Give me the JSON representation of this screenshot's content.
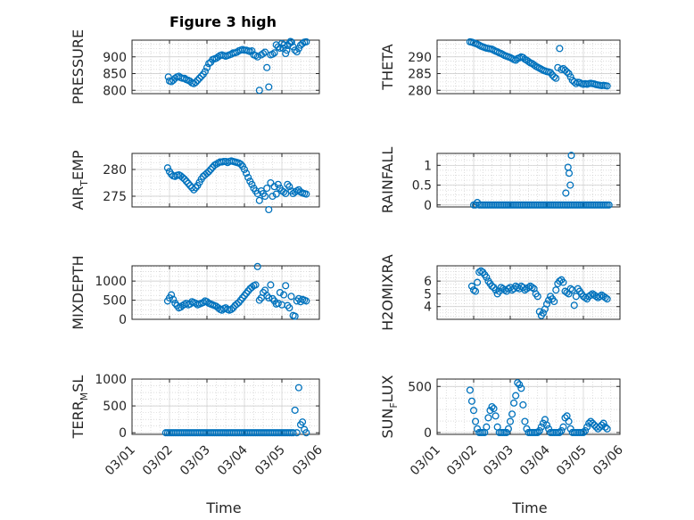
{
  "figure": {
    "title": "Figure 3 high",
    "marker_color": "#0072BD",
    "axes_color": "#262626",
    "grid_color": "#c8c8c8"
  },
  "chart_data": [
    {
      "type": "scatter",
      "id": "pressure",
      "ylabel_parts": [
        "PRESSURE"
      ],
      "title": "Figure 3 high",
      "xlim": [
        0,
        5
      ],
      "ylim": [
        790,
        950
      ],
      "yticks": [
        800,
        850,
        900
      ],
      "ytick_labels": [
        "800",
        "850",
        "900"
      ],
      "x": [
        0.97,
        1.0,
        1.05,
        1.1,
        1.15,
        1.2,
        1.25,
        1.3,
        1.35,
        1.4,
        1.45,
        1.5,
        1.55,
        1.6,
        1.65,
        1.7,
        1.75,
        1.8,
        1.85,
        1.9,
        1.95,
        2.0,
        2.05,
        2.1,
        2.15,
        2.2,
        2.25,
        2.3,
        2.35,
        2.4,
        2.45,
        2.5,
        2.55,
        2.6,
        2.65,
        2.7,
        2.75,
        2.8,
        2.85,
        2.9,
        2.95,
        3.0,
        3.05,
        3.1,
        3.15,
        3.2,
        3.25,
        3.3,
        3.35,
        3.4,
        3.45,
        3.5,
        3.55,
        3.6,
        3.65,
        3.7,
        3.75,
        3.8,
        3.85,
        3.9,
        3.95,
        4.0,
        4.03,
        4.06,
        4.1,
        4.13,
        4.16,
        4.2,
        4.23,
        4.26,
        4.3,
        4.35,
        4.4,
        4.45,
        4.5,
        4.55,
        4.6,
        4.65
      ],
      "y": [
        840,
        828,
        826,
        830,
        836,
        840,
        842,
        838,
        836,
        836,
        832,
        830,
        827,
        822,
        820,
        824,
        830,
        836,
        842,
        848,
        856,
        868,
        880,
        884,
        892,
        894,
        896,
        900,
        904,
        906,
        904,
        902,
        904,
        906,
        908,
        912,
        912,
        914,
        918,
        920,
        922,
        920,
        920,
        918,
        916,
        918,
        906,
        904,
        900,
        800,
        906,
        910,
        914,
        868,
        810,
        906,
        908,
        912,
        936,
        930,
        926,
        940,
        926,
        936,
        910,
        920,
        934,
        940,
        946,
        944,
        930,
        920,
        915,
        925,
        935,
        940,
        944,
        945
      ]
    },
    {
      "type": "scatter",
      "id": "theta",
      "ylabel_parts": [
        "THETA"
      ],
      "xlim": [
        0,
        5
      ],
      "ylim": [
        279,
        295
      ],
      "yticks": [
        280,
        285,
        290
      ],
      "ytick_labels": [
        "280",
        "285",
        "290"
      ],
      "x": [
        0.9,
        0.95,
        1.0,
        1.05,
        1.1,
        1.15,
        1.2,
        1.25,
        1.3,
        1.35,
        1.4,
        1.45,
        1.5,
        1.55,
        1.6,
        1.65,
        1.7,
        1.75,
        1.8,
        1.85,
        1.9,
        1.95,
        2.0,
        2.05,
        2.1,
        2.15,
        2.2,
        2.25,
        2.3,
        2.35,
        2.4,
        2.45,
        2.5,
        2.55,
        2.6,
        2.65,
        2.7,
        2.75,
        2.8,
        2.85,
        2.9,
        2.95,
        3.0,
        3.05,
        3.1,
        3.15,
        3.2,
        3.25,
        3.3,
        3.35,
        3.4,
        3.45,
        3.5,
        3.55,
        3.6,
        3.65,
        3.7,
        3.75,
        3.8,
        3.85,
        3.9,
        3.95,
        4.0,
        4.05,
        4.1,
        4.15,
        4.2,
        4.25,
        4.3,
        4.35,
        4.4,
        4.45,
        4.5,
        4.55,
        4.6,
        4.65
      ],
      "y": [
        294.5,
        294.4,
        294.2,
        294.0,
        293.8,
        293.5,
        293.2,
        293.0,
        292.8,
        292.6,
        292.5,
        292.4,
        292.3,
        292.0,
        291.7,
        291.5,
        291.2,
        291.0,
        290.7,
        290.4,
        290.2,
        290.0,
        289.8,
        289.5,
        289.2,
        289.0,
        289.5,
        289.7,
        290.0,
        289.8,
        289.3,
        289.0,
        288.6,
        288.2,
        288.0,
        287.6,
        287.2,
        286.9,
        286.6,
        286.3,
        286.0,
        285.8,
        285.6,
        285.5,
        285.3,
        284.6,
        284.0,
        283.6,
        286.8,
        292.5,
        286.2,
        286.5,
        286.0,
        285.5,
        285.0,
        284.0,
        283.0,
        282.5,
        282.0,
        282.4,
        282.3,
        282.0,
        281.8,
        282.0,
        281.8,
        282.0,
        282.1,
        282.0,
        281.9,
        281.7,
        281.6,
        281.5,
        281.4,
        281.5,
        281.4,
        281.3
      ]
    },
    {
      "type": "scatter",
      "id": "air_temp",
      "ylabel_parts": [
        "AIR",
        "T",
        "EMP"
      ],
      "xlim": [
        0,
        5
      ],
      "ylim": [
        273,
        283
      ],
      "yticks": [
        275,
        280
      ],
      "ytick_labels": [
        "275",
        "280"
      ],
      "x": [
        0.95,
        1.0,
        1.05,
        1.1,
        1.15,
        1.2,
        1.25,
        1.3,
        1.35,
        1.4,
        1.45,
        1.5,
        1.55,
        1.6,
        1.65,
        1.7,
        1.75,
        1.8,
        1.85,
        1.9,
        1.95,
        2.0,
        2.05,
        2.1,
        2.15,
        2.2,
        2.25,
        2.3,
        2.35,
        2.4,
        2.45,
        2.5,
        2.55,
        2.6,
        2.65,
        2.7,
        2.75,
        2.8,
        2.85,
        2.9,
        2.95,
        3.0,
        3.05,
        3.1,
        3.15,
        3.2,
        3.25,
        3.3,
        3.35,
        3.4,
        3.45,
        3.5,
        3.55,
        3.6,
        3.65,
        3.7,
        3.75,
        3.8,
        3.85,
        3.9,
        3.95,
        4.0,
        4.05,
        4.1,
        4.15,
        4.2,
        4.25,
        4.3,
        4.35,
        4.4,
        4.45,
        4.5,
        4.55,
        4.6,
        4.65
      ],
      "y": [
        280.3,
        279.6,
        279.1,
        278.8,
        278.7,
        278.9,
        279.0,
        278.8,
        278.5,
        278.2,
        277.8,
        277.4,
        277.0,
        276.6,
        276.2,
        276.6,
        277.0,
        277.6,
        278.2,
        278.7,
        279.0,
        279.3,
        279.6,
        280.0,
        280.4,
        280.8,
        281.0,
        281.2,
        281.4,
        281.4,
        281.5,
        281.5,
        281.3,
        281.5,
        281.6,
        281.5,
        281.4,
        281.3,
        281.2,
        281.0,
        280.6,
        280.0,
        279.3,
        278.5,
        277.8,
        277.2,
        276.5,
        276.0,
        275.5,
        274.2,
        276.0,
        275.5,
        275.0,
        276.5,
        272.5,
        277.5,
        275.0,
        276.8,
        275.4,
        277.2,
        276.5,
        276.0,
        275.8,
        275.5,
        277.2,
        276.8,
        276.0,
        275.5,
        275.8,
        276.0,
        276.2,
        275.8,
        275.6,
        275.5,
        275.4
      ]
    },
    {
      "type": "scatter",
      "id": "rainfall",
      "ylabel_parts": [
        "RAINFALL"
      ],
      "xlim": [
        0,
        5
      ],
      "ylim": [
        -0.05,
        1.3
      ],
      "yticks": [
        0,
        0.5,
        1
      ],
      "ytick_labels": [
        "0",
        "0.5",
        "1"
      ],
      "x": [
        1.0,
        1.05,
        1.1,
        1.15,
        1.2,
        1.25,
        1.3,
        1.35,
        1.4,
        1.45,
        1.5,
        1.55,
        1.6,
        1.65,
        1.7,
        1.75,
        1.8,
        1.85,
        1.9,
        1.95,
        2.0,
        2.05,
        2.1,
        2.15,
        2.2,
        2.25,
        2.3,
        2.35,
        2.4,
        2.45,
        2.5,
        2.55,
        2.6,
        2.65,
        2.7,
        2.75,
        2.8,
        2.85,
        2.9,
        2.95,
        3.0,
        3.05,
        3.1,
        3.15,
        3.2,
        3.25,
        3.3,
        3.35,
        3.4,
        3.45,
        3.5,
        3.55,
        3.6,
        3.65,
        3.7,
        3.75,
        3.8,
        3.85,
        3.9,
        3.95,
        4.0,
        4.05,
        4.1,
        4.15,
        4.2,
        4.25,
        4.3,
        4.35,
        4.4,
        4.45,
        4.5,
        4.55,
        4.6,
        4.65,
        4.7,
        3.52,
        3.58,
        3.61,
        3.64,
        3.67
      ],
      "y": [
        0,
        0,
        0.06,
        0,
        0,
        0,
        0,
        0,
        0,
        0,
        0,
        0,
        0,
        0,
        0,
        0,
        0,
        0,
        0,
        0,
        0,
        0,
        0,
        0,
        0,
        0,
        0,
        0,
        0,
        0,
        0,
        0,
        0,
        0,
        0,
        0,
        0,
        0,
        0,
        0,
        0,
        0,
        0,
        0,
        0,
        0,
        0,
        0,
        0,
        0,
        0,
        0,
        0,
        0,
        0,
        0,
        0,
        0,
        0,
        0,
        0,
        0,
        0,
        0,
        0,
        0,
        0,
        0,
        0,
        0,
        0,
        0,
        0,
        0,
        0,
        0.3,
        0.95,
        0.8,
        0.5,
        1.25
      ]
    },
    {
      "type": "scatter",
      "id": "mixdepth",
      "ylabel_parts": [
        "MIXDEPTH"
      ],
      "xlim": [
        0,
        5
      ],
      "ylim": [
        0,
        1400
      ],
      "yticks": [
        0,
        500,
        1000
      ],
      "ytick_labels": [
        "0",
        "500",
        "1000"
      ],
      "x": [
        0.95,
        1.0,
        1.05,
        1.1,
        1.15,
        1.2,
        1.25,
        1.3,
        1.35,
        1.4,
        1.45,
        1.5,
        1.55,
        1.6,
        1.65,
        1.7,
        1.75,
        1.8,
        1.85,
        1.9,
        1.95,
        2.0,
        2.05,
        2.1,
        2.15,
        2.2,
        2.25,
        2.3,
        2.35,
        2.4,
        2.45,
        2.5,
        2.55,
        2.6,
        2.65,
        2.7,
        2.75,
        2.8,
        2.85,
        2.9,
        2.95,
        3.0,
        3.05,
        3.1,
        3.15,
        3.2,
        3.25,
        3.3,
        3.35,
        3.4,
        3.45,
        3.5,
        3.55,
        3.6,
        3.65,
        3.7,
        3.75,
        3.8,
        3.85,
        3.9,
        3.95,
        4.0,
        4.05,
        4.1,
        4.15,
        4.2,
        4.25,
        4.3,
        4.35,
        4.4,
        4.45,
        4.5,
        4.55,
        4.6,
        4.65
      ],
      "y": [
        480,
        560,
        640,
        520,
        420,
        360,
        300,
        320,
        360,
        390,
        420,
        380,
        400,
        460,
        440,
        420,
        380,
        400,
        420,
        440,
        480,
        460,
        420,
        400,
        380,
        360,
        340,
        300,
        260,
        240,
        280,
        300,
        260,
        240,
        260,
        300,
        360,
        400,
        440,
        500,
        560,
        620,
        680,
        740,
        800,
        840,
        880,
        900,
        1380,
        500,
        560,
        700,
        760,
        620,
        560,
        900,
        540,
        480,
        400,
        420,
        700,
        380,
        640,
        880,
        360,
        300,
        600,
        100,
        80,
        480,
        540,
        460,
        520,
        500,
        480
      ]
    },
    {
      "type": "scatter",
      "id": "h2omixra",
      "ylabel_parts": [
        "H2OMIXRA"
      ],
      "xlim": [
        0,
        5
      ],
      "ylim": [
        3,
        7.2
      ],
      "yticks": [
        4,
        5,
        6
      ],
      "ytick_labels": [
        "4",
        "5",
        "6"
      ],
      "x": [
        0.95,
        1.0,
        1.05,
        1.1,
        1.15,
        1.2,
        1.25,
        1.3,
        1.35,
        1.4,
        1.45,
        1.5,
        1.55,
        1.6,
        1.65,
        1.7,
        1.75,
        1.8,
        1.85,
        1.9,
        1.95,
        2.0,
        2.05,
        2.1,
        2.15,
        2.2,
        2.25,
        2.3,
        2.35,
        2.4,
        2.45,
        2.5,
        2.55,
        2.6,
        2.65,
        2.7,
        2.75,
        2.8,
        2.85,
        2.9,
        2.95,
        3.0,
        3.05,
        3.1,
        3.15,
        3.2,
        3.25,
        3.3,
        3.35,
        3.4,
        3.45,
        3.5,
        3.55,
        3.6,
        3.65,
        3.7,
        3.75,
        3.8,
        3.85,
        3.9,
        3.95,
        4.0,
        4.05,
        4.1,
        4.15,
        4.2,
        4.25,
        4.3,
        4.35,
        4.4,
        4.45,
        4.5,
        4.55,
        4.6,
        4.65
      ],
      "y": [
        5.6,
        5.3,
        5.2,
        5.9,
        6.7,
        6.8,
        6.7,
        6.5,
        6.3,
        6.0,
        5.8,
        5.6,
        5.5,
        5.3,
        5.0,
        5.2,
        5.5,
        5.4,
        5.3,
        5.2,
        5.4,
        5.5,
        5.3,
        5.4,
        5.6,
        5.5,
        5.4,
        5.6,
        5.5,
        5.3,
        5.4,
        5.5,
        5.6,
        5.5,
        5.4,
        5.0,
        4.8,
        3.6,
        3.3,
        3.5,
        3.8,
        4.2,
        4.5,
        4.8,
        4.6,
        4.4,
        5.3,
        5.8,
        6.0,
        6.1,
        5.9,
        5.2,
        5.1,
        5.0,
        5.4,
        5.3,
        4.1,
        4.8,
        5.4,
        5.2,
        5.0,
        4.8,
        4.7,
        4.6,
        4.8,
        4.9,
        5.0,
        4.9,
        4.8,
        4.7,
        4.8,
        4.9,
        4.8,
        4.7,
        4.6
      ]
    },
    {
      "type": "scatter",
      "id": "terr_msl",
      "ylabel_parts": [
        "TERR",
        "M",
        "SL"
      ],
      "xlim": [
        0,
        5
      ],
      "ylim": [
        -30,
        1000
      ],
      "yticks": [
        0,
        500,
        1000
      ],
      "ytick_labels": [
        "0",
        "500",
        "1000"
      ],
      "x": [
        0.9,
        0.95,
        1.0,
        1.05,
        1.1,
        1.15,
        1.2,
        1.25,
        1.3,
        1.35,
        1.4,
        1.45,
        1.5,
        1.55,
        1.6,
        1.65,
        1.7,
        1.75,
        1.8,
        1.85,
        1.9,
        1.95,
        2.0,
        2.05,
        2.1,
        2.15,
        2.2,
        2.25,
        2.3,
        2.35,
        2.4,
        2.45,
        2.5,
        2.55,
        2.6,
        2.65,
        2.7,
        2.75,
        2.8,
        2.85,
        2.9,
        2.95,
        3.0,
        3.05,
        3.1,
        3.15,
        3.2,
        3.25,
        3.3,
        3.35,
        3.4,
        3.45,
        3.5,
        3.55,
        3.6,
        3.65,
        3.7,
        3.75,
        3.8,
        3.85,
        3.9,
        3.95,
        4.0,
        4.05,
        4.1,
        4.15,
        4.2,
        4.25,
        4.3,
        4.35,
        4.4,
        4.45,
        4.5,
        4.55,
        4.6,
        4.65
      ],
      "y": [
        0,
        0,
        0,
        0,
        0,
        0,
        0,
        0,
        0,
        0,
        0,
        0,
        0,
        0,
        0,
        0,
        0,
        0,
        0,
        0,
        0,
        0,
        0,
        0,
        0,
        0,
        0,
        0,
        0,
        0,
        0,
        0,
        0,
        0,
        0,
        0,
        0,
        0,
        0,
        0,
        0,
        0,
        0,
        0,
        0,
        0,
        0,
        0,
        0,
        0,
        0,
        0,
        0,
        0,
        0,
        0,
        0,
        0,
        0,
        0,
        0,
        0,
        0,
        0,
        0,
        0,
        0,
        0,
        0,
        420,
        0,
        840,
        150,
        200,
        60,
        0
      ]
    },
    {
      "type": "scatter",
      "id": "sun_flux",
      "ylabel_parts": [
        "SUN",
        "F",
        "LUX"
      ],
      "xlim": [
        0,
        5
      ],
      "ylim": [
        -20,
        580
      ],
      "yticks": [
        0,
        500
      ],
      "ytick_labels": [
        "0",
        "500"
      ],
      "x": [
        0.9,
        0.95,
        1.0,
        1.05,
        1.1,
        1.15,
        1.2,
        1.25,
        1.3,
        1.35,
        1.4,
        1.45,
        1.5,
        1.55,
        1.6,
        1.65,
        1.7,
        1.75,
        1.8,
        1.85,
        1.9,
        1.95,
        2.0,
        2.05,
        2.1,
        2.15,
        2.2,
        2.25,
        2.3,
        2.35,
        2.4,
        2.45,
        2.5,
        2.55,
        2.6,
        2.65,
        2.7,
        2.75,
        2.8,
        2.85,
        2.9,
        2.95,
        3.0,
        3.05,
        3.1,
        3.15,
        3.2,
        3.25,
        3.3,
        3.35,
        3.4,
        3.45,
        3.5,
        3.55,
        3.6,
        3.65,
        3.7,
        3.75,
        3.8,
        3.85,
        3.9,
        3.95,
        4.0,
        4.05,
        4.1,
        4.15,
        4.2,
        4.25,
        4.3,
        4.35,
        4.4,
        4.45,
        4.5,
        4.55,
        4.6,
        4.65
      ],
      "y": [
        460,
        340,
        240,
        120,
        40,
        0,
        0,
        0,
        0,
        60,
        160,
        240,
        280,
        260,
        180,
        60,
        0,
        0,
        0,
        0,
        0,
        40,
        120,
        200,
        320,
        400,
        540,
        520,
        480,
        300,
        120,
        40,
        0,
        0,
        0,
        0,
        0,
        0,
        20,
        60,
        100,
        140,
        80,
        40,
        0,
        0,
        0,
        0,
        0,
        0,
        20,
        60,
        160,
        180,
        120,
        40,
        0,
        0,
        0,
        0,
        0,
        0,
        0,
        20,
        60,
        100,
        120,
        100,
        80,
        60,
        40,
        60,
        80,
        100,
        60,
        40
      ]
    }
  ],
  "xaxis": {
    "tick_labels": [
      "03/01",
      "03/02",
      "03/03",
      "03/04",
      "03/05",
      "03/06"
    ],
    "xlabel": "Time"
  }
}
